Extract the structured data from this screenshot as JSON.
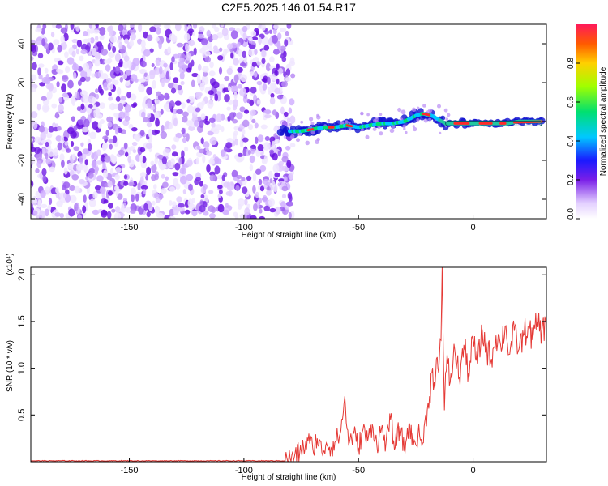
{
  "title": "C2E5.2025.146.01.54.R17",
  "chart_data": [
    {
      "type": "heatmap",
      "xlabel": "Height of straight line (km)",
      "ylabel": "Frequency (Hz)",
      "xlim": [
        -193,
        32
      ],
      "ylim": [
        -50,
        50
      ],
      "x_ticks": [
        -150,
        -100,
        -50,
        0
      ],
      "y_ticks": [
        -40,
        -20,
        0,
        20,
        40
      ],
      "noise_region_x": [
        -193,
        -80
      ],
      "signal_track": {
        "x": [
          -80,
          -75,
          -70,
          -65,
          -60,
          -55,
          -50,
          -45,
          -40,
          -35,
          -30,
          -25,
          -22,
          -18,
          -15,
          -12,
          -8,
          -4,
          0,
          5,
          10,
          15,
          20,
          25,
          30
        ],
        "freq": [
          -5,
          -5,
          -4,
          -3,
          -3,
          -2,
          -3,
          -2,
          -1,
          -1,
          0,
          3,
          4,
          3,
          1,
          -1,
          -1,
          -1,
          -1,
          -1,
          -1,
          -1,
          0,
          0,
          0
        ]
      },
      "colorbar": {
        "label": "Normalized spectral amplitude",
        "ticks": [
          "0.0",
          "0.2",
          "0.4",
          "0.6",
          "0.8"
        ],
        "range": [
          0,
          1
        ]
      }
    },
    {
      "type": "line",
      "xlabel": "Height of straight line (km)",
      "ylabel": "SNR (10 * v/v)",
      "y_multiplier": "(x10⁴)",
      "xlim": [
        -193,
        32
      ],
      "ylim": [
        0,
        2.08
      ],
      "x_ticks": [
        -150,
        -100,
        -50,
        0
      ],
      "y_ticks": [
        "0.5",
        "1.0",
        "1.5",
        "2.0"
      ],
      "y_tick_values": [
        0.5,
        1.0,
        1.5,
        2.0
      ],
      "color": "#e53935",
      "x": [
        -193,
        -150,
        -100,
        -82,
        -78,
        -75,
        -72,
        -70,
        -68,
        -66,
        -64,
        -62,
        -60,
        -58,
        -57,
        -56,
        -55,
        -54,
        -52,
        -50,
        -48,
        -46,
        -44,
        -42,
        -40,
        -38,
        -36,
        -34,
        -32,
        -30,
        -28,
        -26,
        -24,
        -22,
        -20,
        -19,
        -18,
        -17,
        -16,
        -15,
        -14,
        -13.5,
        -13,
        -12.5,
        -12,
        -11,
        -10,
        -8,
        -6,
        -4,
        -2,
        0,
        2,
        4,
        6,
        8,
        10,
        12,
        14,
        16,
        18,
        20,
        22,
        24,
        26,
        28,
        30,
        32
      ],
      "values": [
        0.01,
        0.01,
        0.01,
        0.01,
        0.05,
        0.12,
        0.22,
        0.15,
        0.25,
        0.1,
        0.2,
        0.15,
        0.22,
        0.3,
        0.45,
        0.7,
        0.35,
        0.2,
        0.3,
        0.15,
        0.35,
        0.22,
        0.4,
        0.18,
        0.35,
        0.2,
        0.45,
        0.15,
        0.38,
        0.12,
        0.4,
        0.18,
        0.3,
        0.2,
        0.55,
        0.7,
        0.95,
        0.85,
        1.1,
        0.95,
        1.3,
        2.08,
        1.2,
        0.55,
        0.95,
        1.05,
        0.85,
        1.2,
        0.9,
        1.25,
        0.95,
        1.3,
        1.05,
        1.4,
        1.2,
        1.1,
        1.35,
        1.25,
        1.45,
        1.15,
        1.4,
        1.2,
        1.35,
        1.45,
        1.3,
        1.5,
        1.4,
        1.45
      ]
    }
  ]
}
